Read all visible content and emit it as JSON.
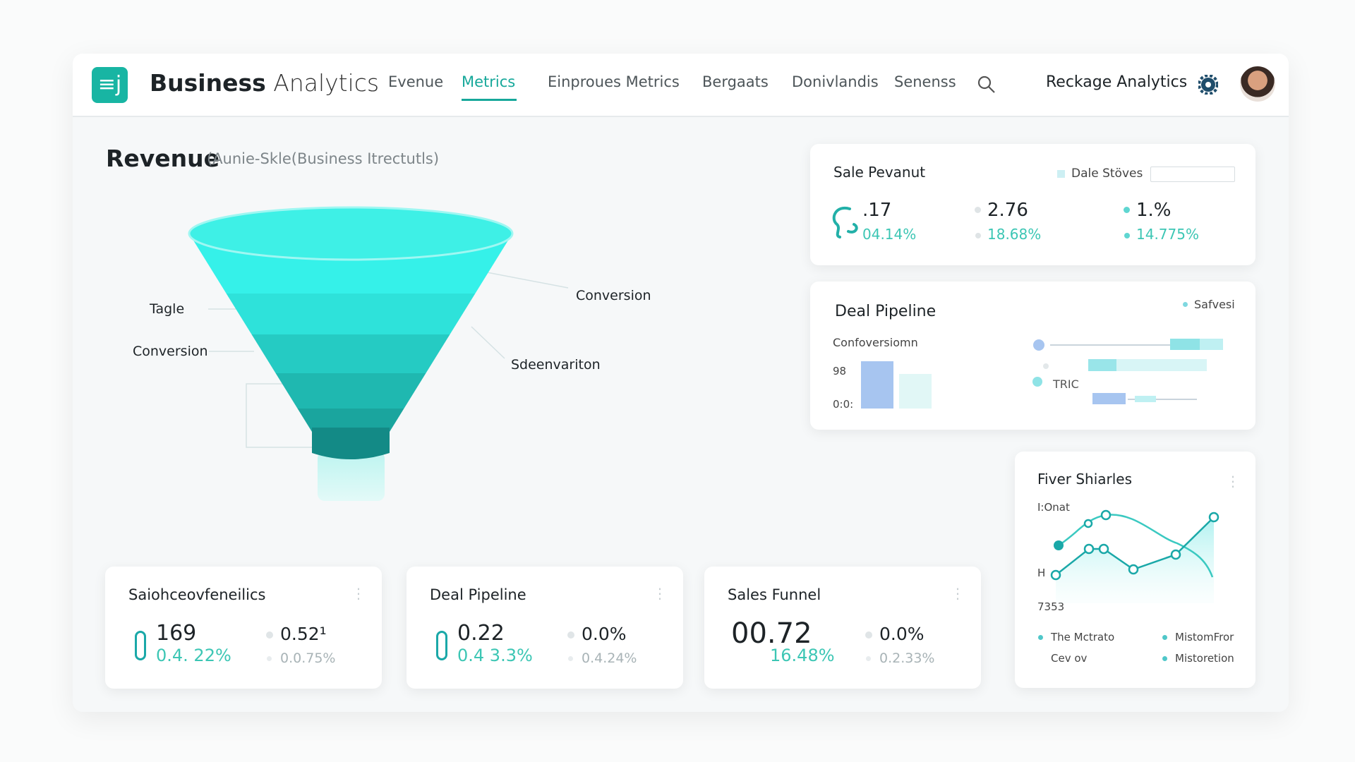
{
  "header": {
    "brand_bold": "Business",
    "brand_light": "Analytics",
    "nav": [
      "Evenue",
      "Metrics",
      "Einproues Metrics",
      "Bergaats",
      "Donivlandis",
      "Senenss"
    ],
    "active_nav": 1,
    "right_title": "Reckage Analytics"
  },
  "revenue": {
    "title": "Revenue",
    "subtitle": "(Aunie-Skle(Business Itrectutls)",
    "labels": {
      "left_top": "Tagle",
      "left_bottom": "Conversion",
      "right_top": "Conversion",
      "right_bottom": "Sdeenvariton"
    }
  },
  "sale_panel": {
    "title": "Sale Pevanut",
    "legend": "Dale Stöves",
    "stats": [
      {
        "value": ".17",
        "change": "04.14%"
      },
      {
        "value": "2.76",
        "change": "18.68%"
      },
      {
        "value": "1.%",
        "change": "14.775%"
      }
    ]
  },
  "deal_panel": {
    "title": "Deal Pipeline",
    "legend": "Safvesi",
    "subtitle": "Confoversiomn",
    "axis_labels": [
      "98",
      "0:0:"
    ],
    "tag": "TRIC"
  },
  "fiver_panel": {
    "title": "Fiver Shiarles",
    "axis_labels": [
      "I:Onat",
      "H",
      "7353"
    ],
    "legend": [
      "The Mctrato",
      "MistomFror",
      "Cev ov",
      "Mistoretion"
    ]
  },
  "cards": [
    {
      "title": "Saiohceovfeneilics",
      "primary": "169",
      "primary_change": "0.4. 22%",
      "secondary": "0.52¹",
      "secondary_change": "0.0.75%"
    },
    {
      "title": "Deal Pipeline",
      "primary": "0.22",
      "primary_change": "0.4 3.3%",
      "secondary": "0.0%",
      "secondary_change": "0.4.24%"
    },
    {
      "title": "Sales Funnel",
      "primary": "00.72",
      "primary_change": "16.48%",
      "secondary": "0.0%",
      "secondary_change": "0.2.33%"
    }
  ]
}
